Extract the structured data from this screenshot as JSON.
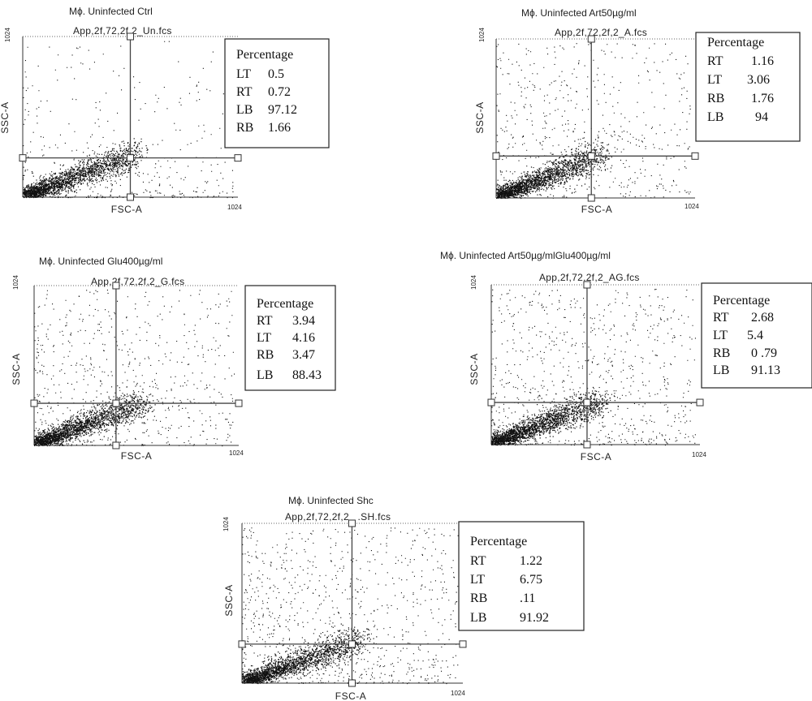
{
  "chart_data": [
    {
      "type": "scatter",
      "title": "Mϕ. Uninfected Ctrl",
      "file": "App,2f,72,2f,2_Un.fcs",
      "xlabel": "FSC-A",
      "ylabel": "SSC-A",
      "x_tick": "1024",
      "y_tick": "1024",
      "xlim": [
        0,
        1024
      ],
      "ylim": [
        0,
        1024
      ],
      "gate": {
        "x": 512,
        "y": 250
      },
      "quadrant_box": {
        "header": "Percentage",
        "rows": [
          {
            "label": "LT",
            "value": "0.5"
          },
          {
            "label": "RT",
            "value": "0.72"
          },
          {
            "label": "LB",
            "value": "97.12"
          },
          {
            "label": "RB",
            "value": "1.66"
          }
        ]
      }
    },
    {
      "type": "scatter",
      "title": "Mϕ. Uninfected Art50µg/ml",
      "file": "App,2f,72,2f,2_A.fcs",
      "xlabel": "FSC-A",
      "ylabel": "SSC-A",
      "x_tick": "1024",
      "y_tick": "1024",
      "xlim": [
        0,
        1024
      ],
      "ylim": [
        0,
        1024
      ],
      "gate": {
        "x": 490,
        "y": 270
      },
      "quadrant_box": {
        "header": "Percentage",
        "rows": [
          {
            "label": "RT",
            "value": "1.16"
          },
          {
            "label": "LT",
            "value": "3.06"
          },
          {
            "label": "RB",
            "value": "1.76"
          },
          {
            "label": "LB",
            "value": "94"
          }
        ]
      }
    },
    {
      "type": "scatter",
      "title": "Mϕ. Uninfected Glu400µg/ml",
      "file": "App,2f,72,2f,2_G.fcs",
      "xlabel": "FSC-A",
      "ylabel": "SSC-A",
      "x_tick": "1024",
      "y_tick": "1024",
      "xlim": [
        0,
        1024
      ],
      "ylim": [
        0,
        1024
      ],
      "gate": {
        "x": 410,
        "y": 270
      },
      "quadrant_box": {
        "header": "Percentage",
        "rows": [
          {
            "label": "RT",
            "value": "3.94"
          },
          {
            "label": "LT",
            "value": "4.16"
          },
          {
            "label": "RB",
            "value": "3.47"
          },
          {
            "label": "LB",
            "value": "88.43"
          }
        ]
      }
    },
    {
      "type": "scatter",
      "title": "Mϕ. Uninfected Art50µg/mlGlu400µg/ml",
      "file": "App,2f,72,2f,2_AG.fcs",
      "xlabel": "FSC-A",
      "ylabel": "SSC-A",
      "x_tick": "1024",
      "y_tick": "1024",
      "xlim": [
        0,
        1024
      ],
      "ylim": [
        0,
        1024
      ],
      "gate": {
        "x": 470,
        "y": 270
      },
      "quadrant_box": {
        "header": "Percentage",
        "rows": [
          {
            "label": "RT",
            "value": "2.68"
          },
          {
            "label": "LT",
            "value": "5.4"
          },
          {
            "label": "RB",
            "value": "0 .79"
          },
          {
            "label": "LB",
            "value": "91.13"
          }
        ]
      }
    },
    {
      "type": "scatter",
      "title": "Mϕ. Uninfected Shc",
      "file": "App,2f,72,2f,2_ .SH.fcs",
      "xlabel": "FSC-A",
      "ylabel": "SSC-A",
      "x_tick": "1024",
      "y_tick": "1024",
      "xlim": [
        0,
        1024
      ],
      "ylim": [
        0,
        1024
      ],
      "gate": {
        "x": 510,
        "y": 250
      },
      "quadrant_box": {
        "header": "Percentage",
        "rows": [
          {
            "label": "RT",
            "value": "1.22"
          },
          {
            "label": "LT",
            "value": "6.75"
          },
          {
            "label": "RB",
            "value": ".11"
          },
          {
            "label": "LB",
            "value": "91.92"
          }
        ]
      }
    }
  ]
}
